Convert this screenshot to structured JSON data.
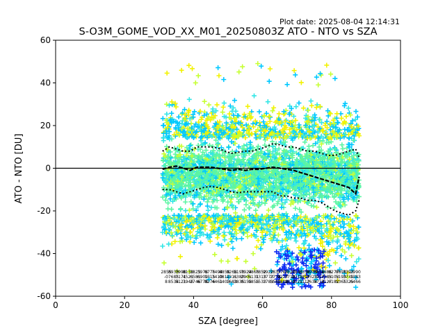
{
  "plot_date": "Plot date: 2025-08-04 12:14:31",
  "chart_data": {
    "type": "scatter",
    "title": "S-O3M_GOME_VOD_XX_M01_20250803Z ATO - NTO vs SZA",
    "xlabel": "SZA [degree]",
    "ylabel": "ATO - NTO [DU]",
    "xlim": [
      0,
      100
    ],
    "ylim": [
      -60,
      60
    ],
    "xticks": [
      0,
      20,
      40,
      60,
      80,
      100
    ],
    "yticks": [
      -60,
      -40,
      -20,
      0,
      20,
      40,
      60
    ],
    "grid": false,
    "legend": "none",
    "reference_line_y": 0,
    "colors": {
      "cool_blue": "#0d2bf2",
      "sky": "#00c8ff",
      "cyan": "#33e6e6",
      "aqua_green": "#5cf5a3",
      "lime": "#c6ff33",
      "yellow": "#f2f200",
      "mean_line": "#000000"
    },
    "mean_profile": {
      "x": [
        31,
        33,
        35,
        37,
        39,
        41,
        43,
        45,
        47,
        49,
        51,
        53,
        55,
        57,
        59,
        61,
        63,
        65,
        67,
        69,
        71,
        73,
        75,
        77,
        79,
        81,
        83,
        85,
        87,
        88
      ],
      "y": [
        -0.5,
        0.5,
        1,
        0,
        -1,
        0.5,
        0.5,
        0.5,
        0,
        -0.5,
        -1,
        -0.5,
        -1,
        -0.5,
        -0.5,
        0,
        0.5,
        0,
        -0.5,
        -1,
        -2,
        -3,
        -4,
        -5,
        -6,
        -7,
        -8,
        -9,
        -12,
        -4
      ]
    },
    "upper_std_profile": {
      "x": [
        31,
        33,
        35,
        37,
        39,
        41,
        43,
        45,
        47,
        49,
        51,
        53,
        55,
        57,
        59,
        61,
        63,
        65,
        67,
        69,
        71,
        73,
        75,
        77,
        79,
        81,
        83,
        85,
        87,
        88
      ],
      "y": [
        8,
        10,
        9,
        8,
        8,
        10,
        10,
        10,
        9.5,
        8,
        7,
        7.5,
        8,
        8,
        9,
        10,
        11.5,
        11,
        10,
        10,
        9,
        8,
        8,
        7,
        6,
        6,
        7,
        8,
        9,
        5
      ]
    },
    "lower_std_profile": {
      "x": [
        31,
        33,
        35,
        37,
        39,
        41,
        43,
        45,
        47,
        49,
        51,
        53,
        55,
        57,
        59,
        61,
        63,
        65,
        67,
        69,
        71,
        73,
        75,
        77,
        79,
        81,
        83,
        85,
        87,
        88
      ],
      "y": [
        -10,
        -10,
        -11,
        -12,
        -11,
        -10,
        -9,
        -8.5,
        -9,
        -10,
        -11,
        -11.5,
        -11,
        -11,
        -11,
        -11,
        -11,
        -13,
        -13,
        -14,
        -14,
        -15,
        -15,
        -16,
        -18,
        -20,
        -21,
        -22,
        -20,
        -15
      ]
    },
    "scatter_summary": {
      "sza_range": [
        31,
        88
      ],
      "core_range": [
        -25,
        20
      ],
      "outlier_range": [
        -58,
        51
      ]
    },
    "bin_counts_row1": [
      "2855",
      "8938",
      "7998",
      "8138",
      "1825",
      "3978",
      "6776",
      "7494",
      "8858",
      "9268",
      "5198",
      "7924",
      "9866",
      "7852",
      "9922",
      "7837",
      "5783",
      "1827",
      "4843",
      "8338",
      "8973",
      "8858",
      "3886",
      "9277",
      "8898",
      "7393",
      "2990"
    ],
    "bin_counts_row2": [
      "-0",
      "7685",
      "7171",
      "4521",
      "6581",
      "6909",
      "1315",
      "3410",
      "0812",
      "1311",
      "6380",
      "2901",
      "5131",
      "1313",
      "3773",
      "2778",
      "9227",
      "3718",
      "0711",
      "1917",
      "4321",
      "3917",
      "7383",
      "5103",
      "5193",
      "3739",
      "1383"
    ],
    "bin_counts_row3": [
      "8",
      "8534",
      "5121",
      "3946",
      "2746",
      "6778",
      "8276",
      "4461",
      "1403",
      "1683",
      "3835",
      "8155",
      "9856",
      "1533",
      "1783",
      "5581",
      "1818",
      "9872",
      "4521",
      "7117",
      "2634",
      "5714",
      "3127",
      "6182",
      "5365",
      "7325",
      "6466"
    ]
  }
}
